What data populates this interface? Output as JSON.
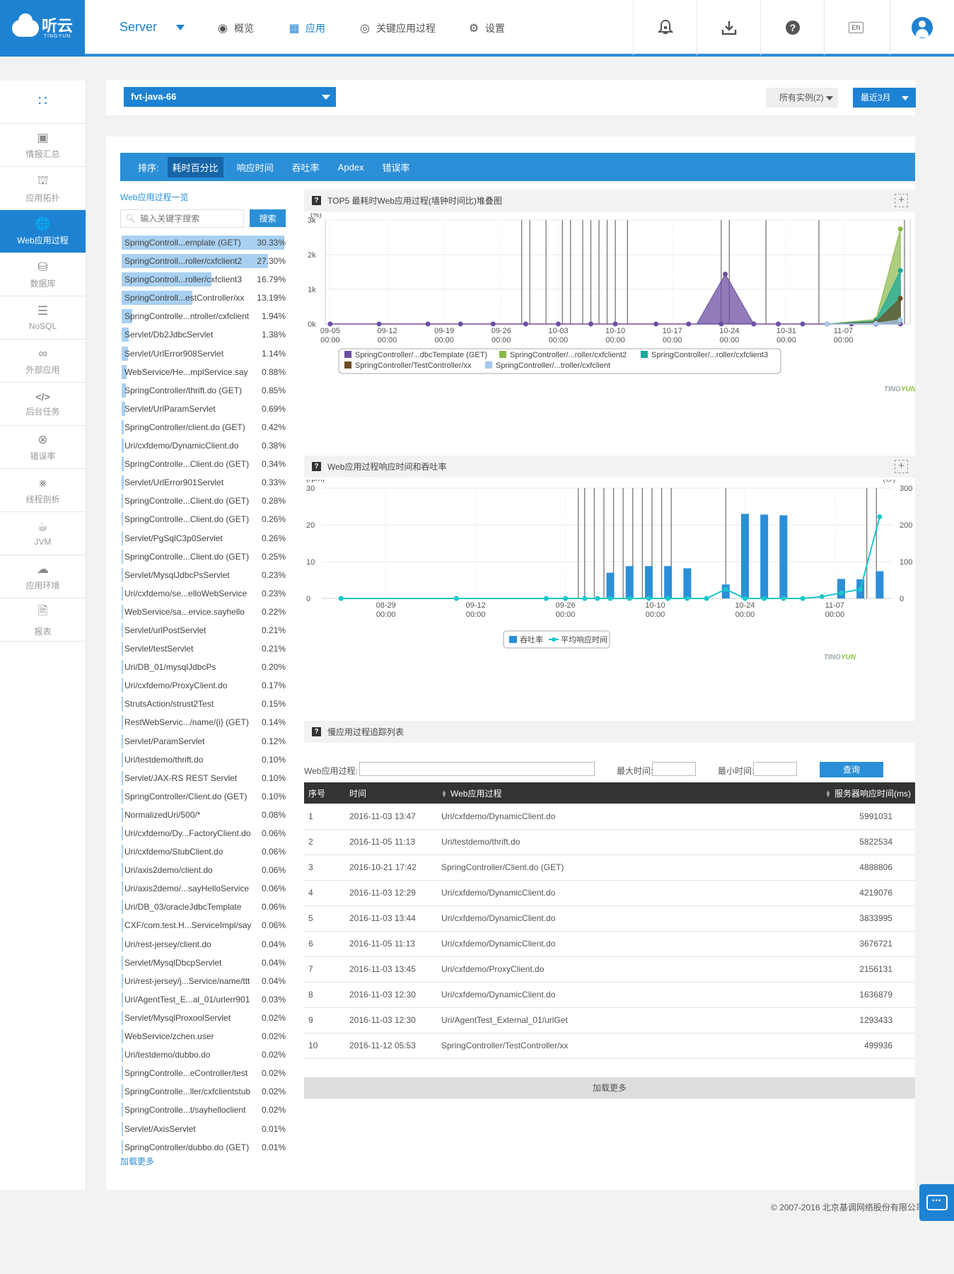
{
  "header": {
    "logo_text": "听云",
    "logo_sub": "TINGYUN",
    "server_label": "Server",
    "nav": [
      {
        "icon": "eye-icon",
        "label": "概览"
      },
      {
        "icon": "apps-icon",
        "label": "应用"
      },
      {
        "icon": "target-icon",
        "label": "关键应用过程"
      },
      {
        "icon": "gear-icon",
        "label": "设置"
      }
    ],
    "active_nav": 1,
    "lang_label": "EN",
    "icons": [
      "bell-icon",
      "download-icon",
      "help-icon",
      "language-icon",
      "user-icon"
    ]
  },
  "sidebar": {
    "items": [
      {
        "icon": "grid-icon",
        "label": ""
      },
      {
        "icon": "summary-icon",
        "label": "情报汇总"
      },
      {
        "icon": "topology-icon",
        "label": "应用拓扑"
      },
      {
        "icon": "globe-icon",
        "label": "Web应用过程"
      },
      {
        "icon": "database-icon",
        "label": "数据库"
      },
      {
        "icon": "nosql-icon",
        "label": "NoSQL"
      },
      {
        "icon": "link-icon",
        "label": "外部应用"
      },
      {
        "icon": "code-icon",
        "label": "后台任务"
      },
      {
        "icon": "error-icon",
        "label": "错误率"
      },
      {
        "icon": "thread-icon",
        "label": "线程剖析"
      },
      {
        "icon": "java-icon",
        "label": "JVM"
      },
      {
        "icon": "environment-icon",
        "label": "应用环境"
      },
      {
        "icon": "report-icon",
        "label": "报表"
      }
    ],
    "active_index": 3
  },
  "selectors": {
    "app": "fvt-java-66",
    "instances": "所有实例(2)",
    "range": "最近3月"
  },
  "sort_bar": {
    "label": "排序:",
    "tabs": [
      "耗时百分比",
      "响应时间",
      "吞吐率",
      "Apdex",
      "错误率"
    ],
    "active": 0
  },
  "web_list": {
    "title": "Web应用过程一览",
    "search_placeholder": "输入关键字搜索",
    "search_button": "搜索",
    "more": "加载更多",
    "items": [
      {
        "name": "SpringControll...emplate (GET)",
        "pct": "30.33%",
        "value": 30.33
      },
      {
        "name": "SpringControll...roller/cxfclient2",
        "pct": "27.30%",
        "value": 27.3
      },
      {
        "name": "SpringControll...roller/cxfclient3",
        "pct": "16.79%",
        "value": 16.79
      },
      {
        "name": "SpringControll...estController/xx",
        "pct": "13.19%",
        "value": 13.19
      },
      {
        "name": "SpringControlle...ntroller/cxfclient",
        "pct": "1.94%",
        "value": 1.94
      },
      {
        "name": "Servlet/Db2JdbcServlet",
        "pct": "1.38%",
        "value": 1.38
      },
      {
        "name": "Servlet/UrlError908Servlet",
        "pct": "1.14%",
        "value": 1.14
      },
      {
        "name": "WebService/He...mplService.say",
        "pct": "0.88%",
        "value": 0.88
      },
      {
        "name": "SpringController/thrift.do (GET)",
        "pct": "0.85%",
        "value": 0.85
      },
      {
        "name": "Servlet/UrlParamServlet",
        "pct": "0.69%",
        "value": 0.69
      },
      {
        "name": "SpringController/client.do (GET)",
        "pct": "0.42%",
        "value": 0.42
      },
      {
        "name": "Uri/cxfdemo/DynamicClient.do",
        "pct": "0.38%",
        "value": 0.38
      },
      {
        "name": "SpringControlle...Client.do (GET)",
        "pct": "0.34%",
        "value": 0.34
      },
      {
        "name": "Servlet/UrlError901Servlet",
        "pct": "0.33%",
        "value": 0.33
      },
      {
        "name": "SpringControlle...Client.do (GET)",
        "pct": "0.28%",
        "value": 0.28
      },
      {
        "name": "SpringControlle...Client.do (GET)",
        "pct": "0.26%",
        "value": 0.26
      },
      {
        "name": "Servlet/PgSqlC3p0Servlet",
        "pct": "0.26%",
        "value": 0.26
      },
      {
        "name": "SpringControlle...Client.do (GET)",
        "pct": "0.25%",
        "value": 0.25
      },
      {
        "name": "Servlet/MysqlJdbcPsServlet",
        "pct": "0.23%",
        "value": 0.23
      },
      {
        "name": "Uri/cxfdemo/se...elloWebService",
        "pct": "0.23%",
        "value": 0.23
      },
      {
        "name": "WebService/sa...ervice.sayhello",
        "pct": "0.22%",
        "value": 0.22
      },
      {
        "name": "Servlet/urlPostServlet",
        "pct": "0.21%",
        "value": 0.21
      },
      {
        "name": "Servlet/testServlet",
        "pct": "0.21%",
        "value": 0.21
      },
      {
        "name": "Uri/DB_01/mysqlJdbcPs",
        "pct": "0.20%",
        "value": 0.2
      },
      {
        "name": "Uri/cxfdemo/ProxyClient.do",
        "pct": "0.17%",
        "value": 0.17
      },
      {
        "name": "StrutsAction/strust2Test",
        "pct": "0.15%",
        "value": 0.15
      },
      {
        "name": "RestWebServic.../name/{i} (GET)",
        "pct": "0.14%",
        "value": 0.14
      },
      {
        "name": "Servlet/ParamServlet",
        "pct": "0.12%",
        "value": 0.12
      },
      {
        "name": "Uri/testdemo/thrift.do",
        "pct": "0.10%",
        "value": 0.1
      },
      {
        "name": "Servlet/JAX-RS REST Servlet",
        "pct": "0.10%",
        "value": 0.1
      },
      {
        "name": "SpringController/Client.do (GET)",
        "pct": "0.10%",
        "value": 0.1
      },
      {
        "name": "NormalizedUri/500/*",
        "pct": "0.08%",
        "value": 0.08
      },
      {
        "name": "Uri/cxfdemo/Dy...FactoryClient.do",
        "pct": "0.06%",
        "value": 0.06
      },
      {
        "name": "Uri/cxfdemo/StubClient.do",
        "pct": "0.06%",
        "value": 0.06
      },
      {
        "name": "Uri/axis2demo/client.do",
        "pct": "0.06%",
        "value": 0.06
      },
      {
        "name": "Uri/axis2demo/...sayHelloService",
        "pct": "0.06%",
        "value": 0.06
      },
      {
        "name": "Uri/DB_03/oracleJdbcTemplate",
        "pct": "0.06%",
        "value": 0.06
      },
      {
        "name": "CXF/com.test.H...ServiceImpl/say",
        "pct": "0.06%",
        "value": 0.06
      },
      {
        "name": "Uri/rest-jersey/client.do",
        "pct": "0.04%",
        "value": 0.04
      },
      {
        "name": "Servlet/MysqlDbcpServlet",
        "pct": "0.04%",
        "value": 0.04
      },
      {
        "name": "Uri/rest-jersey/j...Service/name/ttt",
        "pct": "0.04%",
        "value": 0.04
      },
      {
        "name": "Uri/AgentTest_E...al_01/urlerr901",
        "pct": "0.03%",
        "value": 0.03
      },
      {
        "name": "Servlet/MysqlProxoolServlet",
        "pct": "0.02%",
        "value": 0.02
      },
      {
        "name": "WebService/zchen.user",
        "pct": "0.02%",
        "value": 0.02
      },
      {
        "name": "Uri/testdemo/dubbo.do",
        "pct": "0.02%",
        "value": 0.02
      },
      {
        "name": "SpringControlle...eController/test",
        "pct": "0.02%",
        "value": 0.02
      },
      {
        "name": "SpringControlle...ller/cxfclientstub",
        "pct": "0.02%",
        "value": 0.02
      },
      {
        "name": "SpringControlle...t/sayhelloclient",
        "pct": "0.02%",
        "value": 0.02
      },
      {
        "name": "Servlet/AxisServlet",
        "pct": "0.01%",
        "value": 0.01
      },
      {
        "name": "SpringController/dubbo.do (GET)",
        "pct": "0.01%",
        "value": 0.01
      }
    ]
  },
  "panel1": {
    "title": "TOP5 最耗时Web应用过程(墙钟时间比)堆叠图",
    "q": "?",
    "plus": "+"
  },
  "panel2": {
    "title": "Web应用过程响应时间和吞吐率",
    "q": "?",
    "plus": "+"
  },
  "panel3": {
    "title": "慢应用过程追踪列表",
    "q": "?"
  },
  "brand_mark": {
    "ting": "TING",
    "yun": "YUN",
    "ting_color": "#9aa6ad",
    "yun_color": "#8dc63f"
  },
  "chart_data": [
    {
      "type": "area",
      "ylabel": "(%)",
      "ylim": [
        0,
        3000
      ],
      "y_ticks": [
        "0k",
        "1k",
        "2k",
        "3k"
      ],
      "y_tick_values": [
        0,
        1000,
        2000,
        3000
      ],
      "x_ticks": [
        {
          "date": "09-05",
          "time": "00:00"
        },
        {
          "date": "09-12",
          "time": "00:00"
        },
        {
          "date": "09-19",
          "time": "00:00"
        },
        {
          "date": "09-26",
          "time": "00:00"
        },
        {
          "date": "10-03",
          "time": "00:00"
        },
        {
          "date": "10-10",
          "time": "00:00"
        },
        {
          "date": "10-17",
          "time": "00:00"
        },
        {
          "date": "10-24",
          "time": "00:00"
        },
        {
          "date": "10-31",
          "time": "00:00"
        },
        {
          "date": "11-07",
          "time": "00:00"
        }
      ],
      "x_range_days": [
        -0.6,
        71.2
      ],
      "annotation_days": [
        23.5,
        24.5,
        26.5,
        28.5,
        29.5,
        31.0,
        32.0,
        33.0,
        34.0,
        35.0,
        36.5,
        48.0,
        49.0,
        53.5,
        60.0,
        70.5
      ],
      "series": [
        {
          "name": "SpringController/...dbcTemplate (GET)",
          "color": "#6c4fa3",
          "points": [
            [
              0,
              0
            ],
            [
              6,
              0
            ],
            [
              12,
              0
            ],
            [
              16,
              0
            ],
            [
              20,
              0
            ],
            [
              24,
              0
            ],
            [
              28,
              0
            ],
            [
              32,
              0
            ],
            [
              35,
              0
            ],
            [
              40,
              0
            ],
            [
              44,
              0
            ],
            [
              48,
              0
            ],
            [
              52,
              0
            ],
            [
              55,
              0
            ],
            [
              58,
              0
            ],
            [
              61,
              0
            ],
            [
              64,
              0
            ],
            [
              67,
              0
            ],
            [
              70,
              0
            ]
          ],
          "peak": [
            [
              45,
              0
            ],
            [
              48.5,
              1440
            ],
            [
              52,
              0
            ]
          ]
        },
        {
          "name": "SpringController/...roller/cxfclient2",
          "color": "#8cb848",
          "points": [
            [
              61,
              0
            ],
            [
              67,
              130
            ],
            [
              70,
              2740
            ]
          ]
        },
        {
          "name": "SpringController/...roller/cxfclient3",
          "color": "#1aa89a",
          "points": [
            [
              61,
              0
            ],
            [
              67,
              90
            ],
            [
              70,
              1540
            ]
          ]
        },
        {
          "name": "SpringController/TestController/xx",
          "color": "#6a4e22",
          "points": [
            [
              61,
              0
            ],
            [
              67,
              50
            ],
            [
              70,
              740
            ]
          ]
        },
        {
          "name": "SpringController/...troller/cxfclient",
          "color": "#a8c8ec",
          "points": [
            [
              61,
              0
            ],
            [
              67,
              20
            ],
            [
              70,
              120
            ]
          ]
        }
      ]
    },
    {
      "type": "bar",
      "ylabel": "(rpm)",
      "y2label": "(秒)",
      "ylim": [
        0,
        30
      ],
      "y2lim": [
        0,
        300
      ],
      "y_ticks": [
        "0",
        "10",
        "20",
        "30"
      ],
      "y_tick_values": [
        0,
        10,
        20,
        30
      ],
      "y2_ticks": [
        "0",
        "100",
        "200",
        "300"
      ],
      "y2_tick_values": [
        0,
        100,
        200,
        300
      ],
      "x_ticks": [
        {
          "date": "08-29",
          "time": "00:00",
          "day": 7
        },
        {
          "date": "09-12",
          "time": "00:00",
          "day": 21
        },
        {
          "date": "09-26",
          "time": "00:00",
          "day": 35
        },
        {
          "date": "10-10",
          "time": "00:00",
          "day": 49
        },
        {
          "date": "10-24",
          "time": "00:00",
          "day": 63
        },
        {
          "date": "11-07",
          "time": "00:00",
          "day": 77
        }
      ],
      "x_range_days": [
        -3,
        86
      ],
      "annotation_days": [
        37,
        38,
        39.5,
        41,
        42.5,
        44,
        45.5,
        47,
        48.5,
        50,
        51.5,
        60,
        82,
        83.5
      ],
      "bars": {
        "name": "吞吐率",
        "color": "#2b8fd8",
        "days": [
          42,
          45,
          48,
          51,
          54,
          60,
          63,
          66,
          69,
          72,
          78,
          81,
          84
        ],
        "values": [
          7,
          8.8,
          8.8,
          8.8,
          8.2,
          3.8,
          23,
          22.8,
          22.6,
          0,
          5.3,
          5.2,
          7.4
        ]
      },
      "line": {
        "name": "平均响应时间",
        "color": "#19c6cc",
        "points": [
          [
            0,
            0
          ],
          [
            18,
            0
          ],
          [
            32,
            0
          ],
          [
            35,
            0
          ],
          [
            38,
            0
          ],
          [
            40,
            0
          ],
          [
            42,
            0
          ],
          [
            45,
            0
          ],
          [
            48,
            0
          ],
          [
            51,
            0
          ],
          [
            54,
            0
          ],
          [
            57,
            0
          ],
          [
            60,
            25
          ],
          [
            63,
            0
          ],
          [
            66,
            0
          ],
          [
            69,
            0
          ],
          [
            72,
            0
          ],
          [
            75,
            5
          ],
          [
            78,
            15
          ],
          [
            81,
            25
          ],
          [
            84,
            222
          ]
        ]
      }
    }
  ],
  "slow_table": {
    "form": {
      "process_label": "Web应用过程:",
      "max_label": "最大时间:",
      "min_label": "最小时间:",
      "query": "查询"
    },
    "columns": [
      "序号",
      "时间",
      "Web应用过程",
      "服务器响应时间(ms)"
    ],
    "rows": [
      [
        "1",
        "2016-11-03 13:47",
        "Uri/cxfdemo/DynamicClient.do",
        "5991031"
      ],
      [
        "2",
        "2016-11-05 11:13",
        "Uri/testdemo/thrift.do",
        "5822534"
      ],
      [
        "3",
        "2016-10-21 17:42",
        "SpringController/Client.do (GET)",
        "4888806"
      ],
      [
        "4",
        "2016-11-03 12:29",
        "Uri/cxfdemo/DynamicClient.do",
        "4219076"
      ],
      [
        "5",
        "2016-11-03 13:44",
        "Uri/cxfdemo/DynamicClient.do",
        "3833995"
      ],
      [
        "6",
        "2016-11-05 11:13",
        "Uri/cxfdemo/DynamicClient.do",
        "3676721"
      ],
      [
        "7",
        "2016-11-03 13:45",
        "Uri/cxfdemo/ProxyClient.do",
        "2156131"
      ],
      [
        "8",
        "2016-11-03 12:30",
        "Uri/cxfdemo/DynamicClient.do",
        "1636879"
      ],
      [
        "9",
        "2016-11-03 12:30",
        "Uri/AgentTest_External_01/urlGet",
        "1293433"
      ],
      [
        "10",
        "2016-11-12 05:53",
        "SpringController/TestController/xx",
        "499936"
      ]
    ],
    "more": "加载更多"
  },
  "footer": {
    "copyright": "© 2007-2016 北京基调网络股份有限公司"
  }
}
